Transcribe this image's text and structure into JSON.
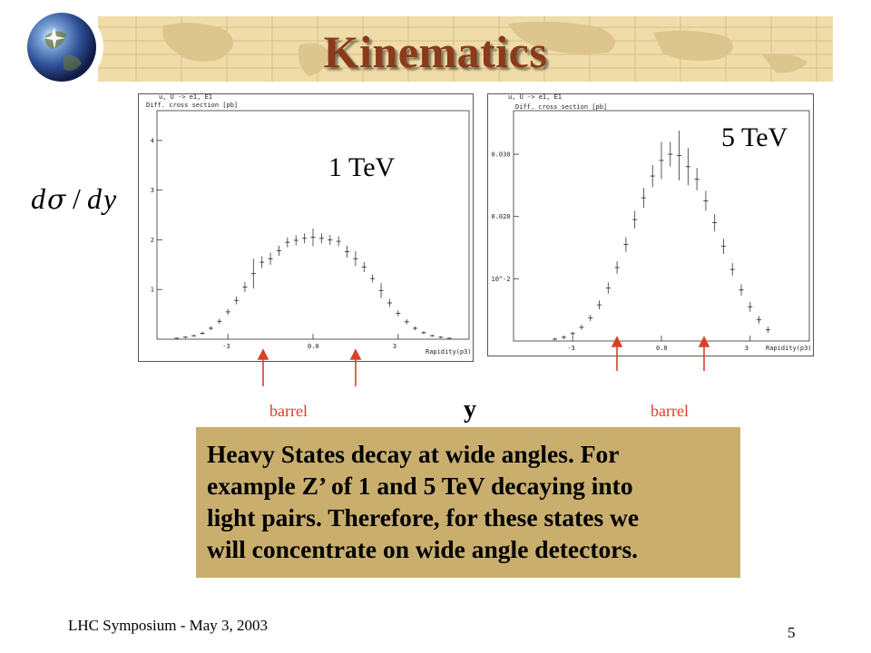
{
  "slide": {
    "title": "Kinematics",
    "formula_symbols": [
      "d",
      "σ",
      "/",
      "d",
      "y"
    ],
    "plot_left_energy": "1 TeV",
    "plot_right_energy": "5 TeV",
    "barrel_left": "barrel",
    "barrel_right": "barrel",
    "axis_variable": "y",
    "text_lines": [
      "Heavy States decay at wide angles. For",
      "example Z’ of 1 and 5 TeV decaying into",
      "light pairs. Therefore, for these states we",
      "will concentrate on wide angle detectors."
    ],
    "footer": "LHC Symposium -  May 3, 2003",
    "page_number": "5"
  },
  "colors": {
    "title": "#8B3A1A",
    "banner": "#efdca8",
    "textbox": "#c9ae6e",
    "arrow": "#d8402a"
  },
  "chart_data": [
    {
      "type": "scatter",
      "plot_header": "u, U -> e1, E1",
      "ylabel": "Diff. cross section [pb]",
      "xlabel": "Rapidity(p3)",
      "x_ticks": [
        "-3",
        "0.0",
        "3"
      ],
      "y_ticks": [
        "1",
        "2",
        "3",
        "4"
      ],
      "xlim": [
        -5.5,
        5.5
      ],
      "ylim": [
        0,
        4.6
      ],
      "x": [
        -4.8,
        -4.5,
        -4.2,
        -3.9,
        -3.6,
        -3.3,
        -3.0,
        -2.7,
        -2.4,
        -2.1,
        -1.8,
        -1.5,
        -1.2,
        -0.9,
        -0.6,
        -0.3,
        0.0,
        0.3,
        0.6,
        0.9,
        1.2,
        1.5,
        1.8,
        2.1,
        2.4,
        2.7,
        3.0,
        3.3,
        3.6,
        3.9,
        4.2,
        4.5,
        4.8
      ],
      "y": [
        0.02,
        0.04,
        0.07,
        0.12,
        0.22,
        0.36,
        0.55,
        0.78,
        1.05,
        1.32,
        1.55,
        1.62,
        1.78,
        1.95,
        1.99,
        2.03,
        2.05,
        2.03,
        2.0,
        1.97,
        1.76,
        1.62,
        1.45,
        1.22,
        0.98,
        0.73,
        0.52,
        0.35,
        0.22,
        0.13,
        0.07,
        0.04,
        0.02
      ],
      "err": [
        0.01,
        0.02,
        0.02,
        0.03,
        0.04,
        0.05,
        0.06,
        0.08,
        0.1,
        0.3,
        0.12,
        0.12,
        0.1,
        0.1,
        0.1,
        0.1,
        0.18,
        0.1,
        0.1,
        0.1,
        0.12,
        0.15,
        0.1,
        0.08,
        0.15,
        0.08,
        0.06,
        0.05,
        0.04,
        0.03,
        0.02,
        0.02,
        0.01
      ]
    },
    {
      "type": "scatter",
      "plot_header": "u, U -> e1, E1",
      "ylabel": "Diff. cross section [pb]",
      "xlabel": "Rapidity(p3)",
      "x_ticks": [
        "-3",
        "0.0",
        "3"
      ],
      "y_ticks": [
        "10^-2",
        "0.020",
        "0.030"
      ],
      "xlim": [
        -5.0,
        5.0
      ],
      "ylim": [
        0,
        0.037
      ],
      "x": [
        -3.6,
        -3.3,
        -3.0,
        -2.7,
        -2.4,
        -2.1,
        -1.8,
        -1.5,
        -1.2,
        -0.9,
        -0.6,
        -0.3,
        0.0,
        0.3,
        0.6,
        0.9,
        1.2,
        1.5,
        1.8,
        2.1,
        2.4,
        2.7,
        3.0,
        3.3,
        3.6
      ],
      "y": [
        0.0003,
        0.0006,
        0.0012,
        0.0022,
        0.0037,
        0.0058,
        0.0085,
        0.0118,
        0.0155,
        0.0195,
        0.023,
        0.0265,
        0.029,
        0.03,
        0.0298,
        0.028,
        0.026,
        0.0225,
        0.019,
        0.0152,
        0.0115,
        0.0082,
        0.0055,
        0.0034,
        0.0018
      ],
      "err": [
        0.0002,
        0.0003,
        0.0003,
        0.0004,
        0.0005,
        0.0007,
        0.0009,
        0.001,
        0.0012,
        0.0014,
        0.0016,
        0.0018,
        0.003,
        0.002,
        0.004,
        0.003,
        0.0018,
        0.0016,
        0.0014,
        0.0012,
        0.001,
        0.0009,
        0.0008,
        0.0006,
        0.0005
      ]
    }
  ]
}
